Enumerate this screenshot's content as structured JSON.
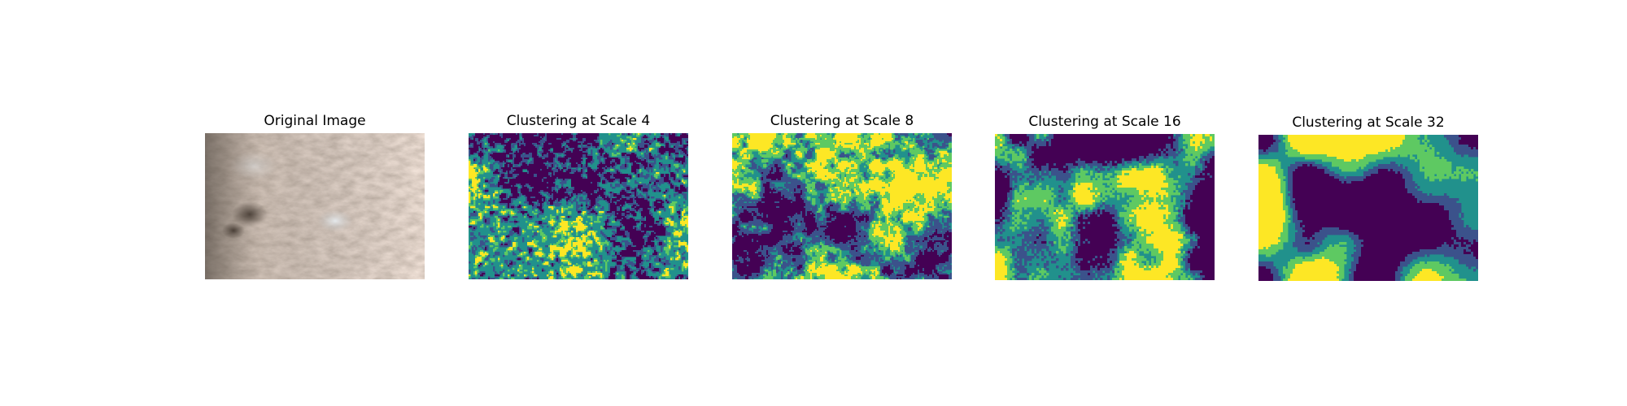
{
  "figure": {
    "panels": [
      {
        "title": "Original Image",
        "kind": "photo",
        "texture": "elephant-skin"
      },
      {
        "title": "Clustering at Scale 4",
        "kind": "cluster-map",
        "scale": 4
      },
      {
        "title": "Clustering at Scale 8",
        "kind": "cluster-map",
        "scale": 8
      },
      {
        "title": "Clustering at Scale 16",
        "kind": "cluster-map",
        "scale": 16
      },
      {
        "title": "Clustering at Scale 32",
        "kind": "cluster-map",
        "scale": 32
      }
    ],
    "palette": [
      "#440154",
      "#3b528b",
      "#21918c",
      "#5ec962",
      "#fde725"
    ]
  }
}
